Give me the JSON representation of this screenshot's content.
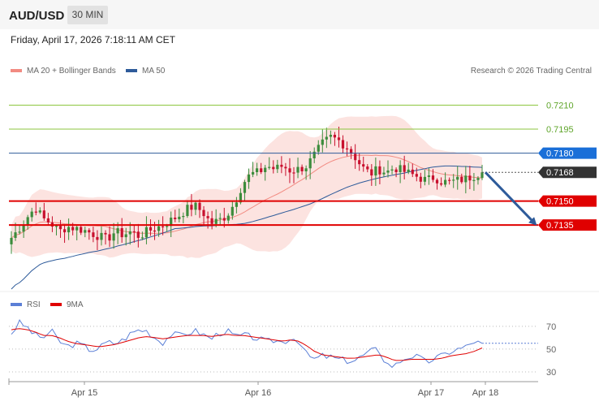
{
  "header": {
    "symbol": "AUD/USD",
    "timeframe": "30 MIN"
  },
  "datetime": "Friday, April 17, 2026 7:18:11 AM CET",
  "legend": {
    "main": [
      {
        "name": "MA 20 + Bollinger Bands",
        "color": "#f28b82"
      },
      {
        "name": "MA 50",
        "color": "#2e5b9a"
      }
    ],
    "rsi": [
      {
        "name": "RSI",
        "color": "#5b7fd6"
      },
      {
        "name": "9MA",
        "color": "#e00000"
      }
    ]
  },
  "credit": "Research © 2026 Trading Central",
  "colors": {
    "up": "#3c8c3c",
    "down": "#c8102e",
    "resistance": "#8dc63f",
    "support": "#e00000",
    "pivot": "#2e5b9a",
    "last": "#333333",
    "arrow": "#2e5b9a"
  },
  "chart_data": [
    {
      "type": "candlestick",
      "ylim": [
        0.7098,
        0.7225
      ],
      "x_ticks": [
        "Apr 15",
        "Apr 16",
        "Apr 17",
        "Apr 18"
      ],
      "levels": [
        {
          "label": "0.7210",
          "value": 0.721,
          "kind": "resistance"
        },
        {
          "label": "0.7195",
          "value": 0.7195,
          "kind": "resistance"
        },
        {
          "label": "0.7180",
          "value": 0.718,
          "kind": "pivot"
        },
        {
          "label": "0.7168",
          "value": 0.7168,
          "kind": "last"
        },
        {
          "label": "0.7150",
          "value": 0.715,
          "kind": "support"
        },
        {
          "label": "0.7135",
          "value": 0.7135,
          "kind": "support"
        }
      ],
      "last_price": 0.7168,
      "projection": {
        "from": 0.7168,
        "to": 0.7135,
        "direction": "down"
      },
      "close_path": [
        0.7127,
        0.7133,
        0.714,
        0.7146,
        0.7139,
        0.7136,
        0.7131,
        0.7134,
        0.7133,
        0.7132,
        0.713,
        0.7128,
        0.7126,
        0.7131,
        0.7129,
        0.7131,
        0.7128,
        0.7131,
        0.7133,
        0.7135,
        0.7138,
        0.7141,
        0.7145,
        0.7147,
        0.7143,
        0.7136,
        0.7138,
        0.7141,
        0.7149,
        0.7161,
        0.7167,
        0.7168,
        0.7172,
        0.717,
        0.7172,
        0.7169,
        0.717,
        0.7172,
        0.7179,
        0.7186,
        0.719,
        0.7188,
        0.7184,
        0.7178,
        0.7171,
        0.7167,
        0.717,
        0.7168,
        0.7171,
        0.7169,
        0.7167,
        0.7165,
        0.7163,
        0.7165,
        0.7162,
        0.7162,
        0.7163,
        0.7164,
        0.7166,
        0.7168
      ]
    },
    {
      "type": "line",
      "name": "RSI",
      "ylim": [
        25,
        82
      ],
      "y_ticks": [
        70,
        50,
        30
      ],
      "rsi_path": [
        64,
        73,
        69,
        62,
        60,
        66,
        57,
        52,
        55,
        53,
        49,
        51,
        56,
        55,
        58,
        64,
        67,
        66,
        60,
        56,
        63,
        62,
        64,
        66,
        63,
        59,
        64,
        66,
        61,
        62,
        61,
        59,
        56,
        58,
        56,
        60,
        58,
        45,
        41,
        44,
        43,
        41,
        40,
        40,
        44,
        48,
        50,
        37,
        35,
        41,
        44,
        43,
        38,
        42,
        44,
        48,
        50,
        52,
        57,
        54
      ],
      "ma_path": [
        67,
        68,
        67,
        65,
        62,
        62,
        60,
        57,
        55,
        54,
        53,
        52,
        53,
        54,
        56,
        58,
        60,
        61,
        60,
        59,
        60,
        61,
        62,
        62,
        62,
        61,
        62,
        63,
        62,
        62,
        61,
        60,
        59,
        58,
        57,
        58,
        57,
        53,
        48,
        45,
        44,
        43,
        42,
        42,
        43,
        44,
        45,
        43,
        40,
        40,
        41,
        41,
        41,
        41,
        42,
        44,
        45,
        46,
        48,
        51
      ]
    }
  ]
}
